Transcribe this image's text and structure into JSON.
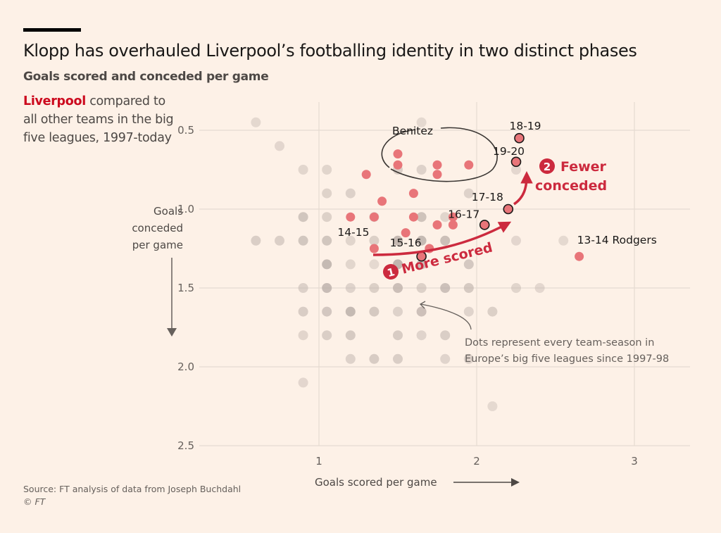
{
  "header": {
    "title": "Klopp has overhauled Liverpool’s footballing identity in two distinct phases",
    "subtitle": "Goals scored and conceded per game",
    "description_highlight": "Liverpool",
    "description_rest": " compared to all other teams in the big five leagues, 1997-today"
  },
  "axes": {
    "y_label_lines": [
      "Goals",
      "conceded",
      "per game"
    ],
    "x_label": "Goals scored per game"
  },
  "footer": {
    "source": "Source: FT analysis of data from Joseph Buchdahl",
    "copyright": "© FT"
  },
  "colors": {
    "background": "#fdf1e7",
    "liverpool": "#e87579",
    "accent_red": "#cc2a3e",
    "other_teams": "#b8aca6",
    "grid": "#e6dbd1"
  },
  "chart_data": {
    "type": "scatter",
    "title": "Klopp has overhauled Liverpool’s footballing identity in two distinct phases",
    "subtitle": "Goals scored and conceded per game",
    "xlabel": "Goals scored per game",
    "ylabel": "Goals conceded per game",
    "xlim": [
      0.55,
      3.35
    ],
    "ylim": [
      0.35,
      2.5
    ],
    "y_inverted": true,
    "x_ticks": [
      1,
      2,
      3
    ],
    "y_ticks": [
      "0.5",
      "1.0",
      "1.5",
      "2.0",
      "2.5"
    ],
    "grid": true,
    "background_series": {
      "name": "All team-seasons, big five leagues since 1997-98",
      "note": "Dense cloud of points on a 0.15 x 0.15 grid, centered near (1.3, 1.4)"
    },
    "liverpool_series": {
      "name": "Liverpool",
      "points": [
        {
          "x": 1.5,
          "y": 0.65,
          "label": ""
        },
        {
          "x": 1.5,
          "y": 0.72,
          "label": ""
        },
        {
          "x": 1.75,
          "y": 0.72,
          "label": ""
        },
        {
          "x": 1.75,
          "y": 0.78,
          "label": ""
        },
        {
          "x": 1.95,
          "y": 0.72,
          "label": ""
        },
        {
          "x": 1.3,
          "y": 0.78,
          "label": ""
        },
        {
          "x": 1.6,
          "y": 0.9,
          "label": ""
        },
        {
          "x": 1.4,
          "y": 0.95,
          "label": ""
        },
        {
          "x": 1.2,
          "y": 1.05,
          "label": ""
        },
        {
          "x": 1.35,
          "y": 1.05,
          "label": ""
        },
        {
          "x": 1.6,
          "y": 1.05,
          "label": ""
        },
        {
          "x": 1.85,
          "y": 1.05,
          "label": ""
        },
        {
          "x": 1.75,
          "y": 1.1,
          "label": ""
        },
        {
          "x": 1.85,
          "y": 1.1,
          "label": ""
        },
        {
          "x": 1.55,
          "y": 1.15,
          "label": ""
        },
        {
          "x": 1.7,
          "y": 1.25,
          "label": ""
        },
        {
          "x": 1.35,
          "y": 1.25,
          "label": "14-15"
        },
        {
          "x": 1.65,
          "y": 1.3,
          "label": "15-16",
          "outlined": true
        },
        {
          "x": 2.05,
          "y": 1.1,
          "label": "16-17",
          "outlined": true
        },
        {
          "x": 2.2,
          "y": 1.0,
          "label": "17-18",
          "outlined": true
        },
        {
          "x": 2.27,
          "y": 0.55,
          "label": "18-19",
          "outlined": true
        },
        {
          "x": 2.25,
          "y": 0.7,
          "label": "19-20",
          "outlined": true
        },
        {
          "x": 2.65,
          "y": 1.3,
          "label": "13-14 Rodgers"
        }
      ]
    },
    "annotations": [
      {
        "text": "Benitez",
        "type": "ellipse-label"
      },
      {
        "number": "1",
        "text": "More scored",
        "type": "arrow"
      },
      {
        "number": "2",
        "text": "Fewer conceded",
        "type": "arrow"
      },
      {
        "text": "Dots represent every team-season in Europe’s big five leagues since 1997-98",
        "type": "callout"
      }
    ]
  },
  "labels": {
    "benitez": "Benitez",
    "phase1_num": "1",
    "phase1_text": "More scored",
    "phase2_num": "2",
    "phase2_line1": "Fewer",
    "phase2_line2": "conceded",
    "note_line1": "Dots represent every team-season in",
    "note_line2": "Europe’s big five leagues since 1997-98"
  }
}
